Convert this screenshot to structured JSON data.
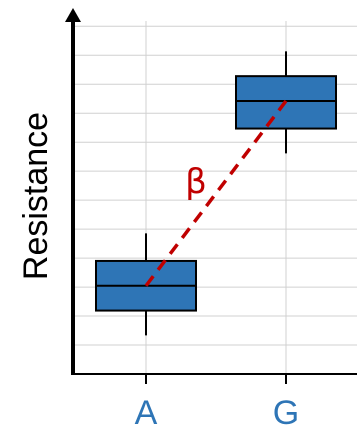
{
  "chart_data": {
    "type": "box",
    "title": "",
    "xlabel": "",
    "ylabel": "Resistance",
    "categories": [
      "A",
      "G"
    ],
    "boxes": [
      {
        "category": "A",
        "whisker_low": 1.4,
        "q1": 2.3,
        "median": 3.2,
        "q3": 4.1,
        "whisker_high": 5.1
      },
      {
        "category": "G",
        "whisker_low": 8.0,
        "q1": 8.9,
        "median": 9.9,
        "q3": 10.8,
        "whisker_high": 11.7
      }
    ],
    "annotation": {
      "text": "β",
      "from": "A",
      "to": "G",
      "style": "dashed"
    },
    "ylim": [
      0,
      12.8
    ],
    "horizontal_gridlines": 12,
    "grid": true,
    "colors": {
      "box_fill": "#2e75b6",
      "box_edge": "#000000",
      "annotation": "#c00000",
      "tick_label": "#2e75b6",
      "grid": "#d0d0d0"
    }
  }
}
